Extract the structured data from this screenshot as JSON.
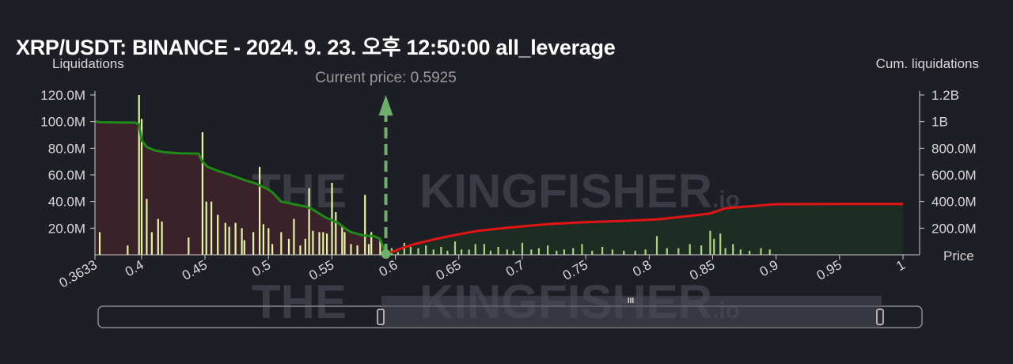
{
  "header": {
    "title": "XRP/USDT: BINANCE - 2024. 9. 23. 오후 12:50:00 all_leverage"
  },
  "watermark": {
    "left": "THE",
    "right": "KINGFISHER",
    "suffix": ".io"
  },
  "chart_data": {
    "type": "bar",
    "left_axis_title": "Liquidations",
    "right_axis_title": "Cum. liquidations",
    "right_axis_bottom_label": "Price",
    "current_price_label": "Current price: 0.5925",
    "current_price": 0.5925,
    "xlim": [
      0.3633,
      1.0
    ],
    "x_ticks": [
      {
        "v": 0.3633,
        "label": "0.3633"
      },
      {
        "v": 0.4,
        "label": "0.4"
      },
      {
        "v": 0.45,
        "label": "0.45"
      },
      {
        "v": 0.5,
        "label": "0.5"
      },
      {
        "v": 0.55,
        "label": "0.55"
      },
      {
        "v": 0.6,
        "label": "0.6"
      },
      {
        "v": 0.65,
        "label": "0.65"
      },
      {
        "v": 0.7,
        "label": "0.7"
      },
      {
        "v": 0.75,
        "label": "0.75"
      },
      {
        "v": 0.8,
        "label": "0.8"
      },
      {
        "v": 0.85,
        "label": "0.85"
      },
      {
        "v": 0.9,
        "label": "0.9"
      },
      {
        "v": 0.95,
        "label": "0.95"
      },
      {
        "v": 1.0,
        "label": "1"
      }
    ],
    "ylim_left": [
      0,
      120000000
    ],
    "y_ticks_left": [
      {
        "v": 20000000,
        "label": "20.0M"
      },
      {
        "v": 40000000,
        "label": "40.0M"
      },
      {
        "v": 60000000,
        "label": "60.0M"
      },
      {
        "v": 80000000,
        "label": "80.0M"
      },
      {
        "v": 100000000,
        "label": "100.0M"
      },
      {
        "v": 120000000,
        "label": "120.0M"
      }
    ],
    "ylim_right": [
      0,
      1200000000
    ],
    "y_ticks_right": [
      {
        "v": 200000000,
        "label": "200.0M"
      },
      {
        "v": 400000000,
        "label": "400.0M"
      },
      {
        "v": 600000000,
        "label": "600.0M"
      },
      {
        "v": 800000000,
        "label": "800.0M"
      },
      {
        "v": 1000000000,
        "label": "1B"
      },
      {
        "v": 1200000000,
        "label": "1.2B"
      }
    ],
    "colors": {
      "long_bar": "#e4f5a8",
      "short_bar": "#a9d67d",
      "long_cum_line": "#1f8a17",
      "long_cum_fill": "#3b2129",
      "short_cum_line": "#e21414",
      "short_cum_fill": "#1e2d24",
      "current_price_marker": "#6fae6b",
      "axis": "#cfcfcf"
    },
    "long_liquidations": [
      [
        0.367,
        17
      ],
      [
        0.389,
        7
      ],
      [
        0.398,
        120
      ],
      [
        0.4,
        102
      ],
      [
        0.404,
        42
      ],
      [
        0.408,
        17
      ],
      [
        0.413,
        27
      ],
      [
        0.416,
        25
      ],
      [
        0.437,
        13
      ],
      [
        0.448,
        92
      ],
      [
        0.451,
        40
      ],
      [
        0.455,
        40
      ],
      [
        0.46,
        30
      ],
      [
        0.466,
        24
      ],
      [
        0.469,
        21
      ],
      [
        0.474,
        24
      ],
      [
        0.479,
        20
      ],
      [
        0.481,
        11
      ],
      [
        0.488,
        17
      ],
      [
        0.493,
        66
      ],
      [
        0.496,
        23
      ],
      [
        0.5,
        20
      ],
      [
        0.503,
        8
      ],
      [
        0.51,
        17
      ],
      [
        0.516,
        12
      ],
      [
        0.52,
        27
      ],
      [
        0.525,
        7
      ],
      [
        0.529,
        12
      ],
      [
        0.532,
        50
      ],
      [
        0.535,
        18
      ],
      [
        0.54,
        17
      ],
      [
        0.543,
        17
      ],
      [
        0.546,
        16
      ],
      [
        0.55,
        54
      ],
      [
        0.553,
        32
      ],
      [
        0.558,
        21
      ],
      [
        0.56,
        17
      ],
      [
        0.565,
        8
      ],
      [
        0.57,
        7
      ],
      [
        0.576,
        45
      ],
      [
        0.579,
        8
      ],
      [
        0.581,
        17
      ],
      [
        0.588,
        11
      ]
    ],
    "short_liquidations": [
      [
        0.597,
        5
      ],
      [
        0.602,
        2
      ],
      [
        0.607,
        9
      ],
      [
        0.612,
        6
      ],
      [
        0.618,
        5
      ],
      [
        0.624,
        7
      ],
      [
        0.63,
        4
      ],
      [
        0.636,
        6
      ],
      [
        0.641,
        3
      ],
      [
        0.647,
        10
      ],
      [
        0.652,
        4
      ],
      [
        0.658,
        4
      ],
      [
        0.663,
        8
      ],
      [
        0.67,
        8
      ],
      [
        0.675,
        3
      ],
      [
        0.681,
        6
      ],
      [
        0.688,
        4
      ],
      [
        0.693,
        3
      ],
      [
        0.7,
        9
      ],
      [
        0.707,
        4
      ],
      [
        0.713,
        5
      ],
      [
        0.72,
        7
      ],
      [
        0.727,
        3
      ],
      [
        0.733,
        4
      ],
      [
        0.74,
        5
      ],
      [
        0.747,
        8
      ],
      [
        0.755,
        3
      ],
      [
        0.763,
        6
      ],
      [
        0.771,
        4
      ],
      [
        0.78,
        3
      ],
      [
        0.789,
        3
      ],
      [
        0.797,
        4
      ],
      [
        0.806,
        14
      ],
      [
        0.814,
        5
      ],
      [
        0.823,
        5
      ],
      [
        0.832,
        8
      ],
      [
        0.841,
        7
      ],
      [
        0.848,
        18
      ],
      [
        0.851,
        12
      ],
      [
        0.856,
        16
      ],
      [
        0.86,
        5
      ],
      [
        0.866,
        8
      ],
      [
        0.872,
        4
      ],
      [
        0.879,
        3
      ],
      [
        0.888,
        5
      ],
      [
        0.895,
        4
      ]
    ],
    "cum_long": [
      [
        0.3633,
        1000000000
      ],
      [
        0.368,
        995000000
      ],
      [
        0.395,
        992000000
      ],
      [
        0.398,
        980000000
      ],
      [
        0.4,
        860000000
      ],
      [
        0.404,
        810000000
      ],
      [
        0.41,
        785000000
      ],
      [
        0.418,
        770000000
      ],
      [
        0.43,
        762000000
      ],
      [
        0.445,
        760000000
      ],
      [
        0.448,
        700000000
      ],
      [
        0.452,
        660000000
      ],
      [
        0.46,
        630000000
      ],
      [
        0.47,
        600000000
      ],
      [
        0.48,
        565000000
      ],
      [
        0.49,
        535000000
      ],
      [
        0.5,
        490000000
      ],
      [
        0.503,
        470000000
      ],
      [
        0.51,
        400000000
      ],
      [
        0.52,
        380000000
      ],
      [
        0.53,
        360000000
      ],
      [
        0.535,
        340000000
      ],
      [
        0.545,
        280000000
      ],
      [
        0.555,
        240000000
      ],
      [
        0.56,
        200000000
      ],
      [
        0.565,
        170000000
      ],
      [
        0.575,
        145000000
      ],
      [
        0.583,
        140000000
      ],
      [
        0.588,
        120000000
      ],
      [
        0.5925,
        0
      ]
    ],
    "cum_short": [
      [
        0.5925,
        0
      ],
      [
        0.597,
        20000000
      ],
      [
        0.605,
        50000000
      ],
      [
        0.615,
        80000000
      ],
      [
        0.63,
        115000000
      ],
      [
        0.645,
        145000000
      ],
      [
        0.665,
        180000000
      ],
      [
        0.69,
        205000000
      ],
      [
        0.72,
        230000000
      ],
      [
        0.75,
        245000000
      ],
      [
        0.78,
        255000000
      ],
      [
        0.805,
        265000000
      ],
      [
        0.83,
        290000000
      ],
      [
        0.848,
        310000000
      ],
      [
        0.86,
        350000000
      ],
      [
        0.88,
        365000000
      ],
      [
        0.9,
        380000000
      ],
      [
        0.95,
        382000000
      ],
      [
        1.0,
        382000000
      ]
    ],
    "grid": false
  },
  "range_slider": {
    "grip_label": "III"
  }
}
